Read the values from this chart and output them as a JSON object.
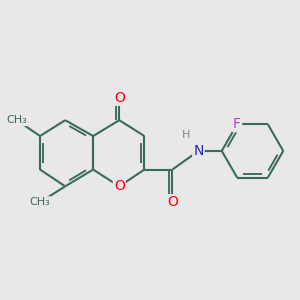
{
  "bg_color": "#e8e8e8",
  "bond_color": "#3a6b5a",
  "bond_width": 1.5,
  "atom_colors": {
    "O": "#ff0000",
    "N": "#2222bb",
    "F": "#bb44bb",
    "H": "#888888",
    "C": "#3a6b5a"
  },
  "font_size": 9,
  "fig_size": [
    3.0,
    3.0
  ],
  "dpi": 100
}
